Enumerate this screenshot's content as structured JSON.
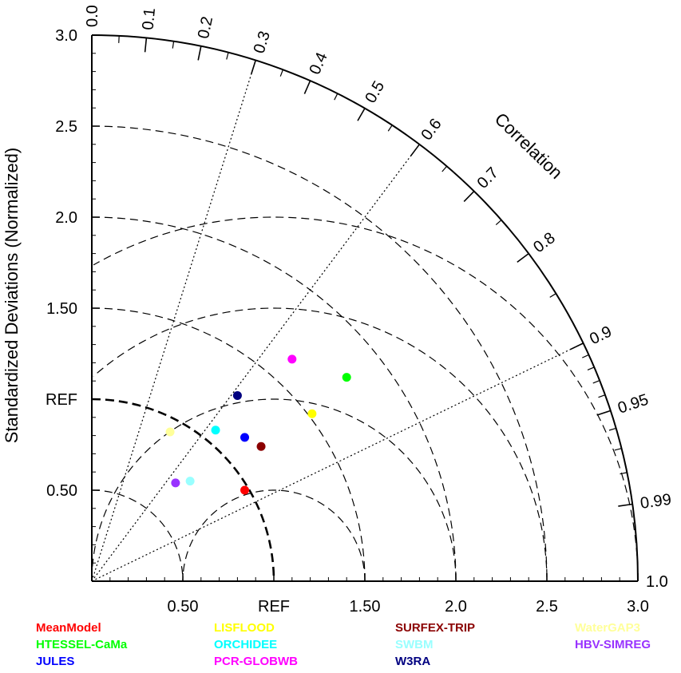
{
  "chart_data": {
    "type": "scatter",
    "subtype": "taylor-diagram",
    "ylabel": "Standardized Deviations (Normalized)",
    "correlation_label": "Correlation",
    "ref_label": "REF",
    "std_range": [
      0,
      3.0
    ],
    "std_ticks": [
      {
        "value": 0.5,
        "label": "0.50"
      },
      {
        "value": 1.0,
        "label": "REF"
      },
      {
        "value": 1.5,
        "label": "1.50"
      },
      {
        "value": 2.0,
        "label": "2.0"
      },
      {
        "value": 2.5,
        "label": "2.5"
      },
      {
        "value": 3.0,
        "label": "3.0"
      }
    ],
    "correlation_ticks": [
      {
        "value": 0.0,
        "label": "0.0"
      },
      {
        "value": 0.1,
        "label": "0.1"
      },
      {
        "value": 0.2,
        "label": "0.2"
      },
      {
        "value": 0.3,
        "label": "0.3"
      },
      {
        "value": 0.4,
        "label": "0.4"
      },
      {
        "value": 0.5,
        "label": "0.5"
      },
      {
        "value": 0.6,
        "label": "0.6"
      },
      {
        "value": 0.7,
        "label": "0.7"
      },
      {
        "value": 0.8,
        "label": "0.8"
      },
      {
        "value": 0.9,
        "label": "0.9"
      },
      {
        "value": 0.95,
        "label": "0.95"
      },
      {
        "value": 0.99,
        "label": "0.99"
      },
      {
        "value": 1.0,
        "label": "1.0"
      }
    ],
    "correlation_rays": [
      0.3,
      0.6,
      0.9
    ],
    "rms_arcs": [
      0.5,
      1.0,
      1.5,
      2.0
    ],
    "std_arcs": [
      0.5,
      1.0,
      1.5,
      2.0,
      2.5
    ],
    "series": [
      {
        "name": "MeanModel",
        "color": "#ff0000",
        "x": 0.84,
        "y": 0.5
      },
      {
        "name": "HTESSEL-CaMa",
        "color": "#00ff00",
        "x": 1.4,
        "y": 1.12
      },
      {
        "name": "JULES",
        "color": "#0000ff",
        "x": 0.84,
        "y": 0.79
      },
      {
        "name": "LISFLOOD",
        "color": "#ffff00",
        "x": 1.21,
        "y": 0.92
      },
      {
        "name": "ORCHIDEE",
        "color": "#00ffff",
        "x": 0.68,
        "y": 0.83
      },
      {
        "name": "PCR-GLOBWB",
        "color": "#ff00ff",
        "x": 1.1,
        "y": 1.22
      },
      {
        "name": "SURFEX-TRIP",
        "color": "#8b0000",
        "x": 0.93,
        "y": 0.74
      },
      {
        "name": "SWBM",
        "color": "#99ffff",
        "x": 0.54,
        "y": 0.55
      },
      {
        "name": "W3RA",
        "color": "#000080",
        "x": 0.8,
        "y": 1.02
      },
      {
        "name": "WaterGAP3",
        "color": "#ffff99",
        "x": 0.43,
        "y": 0.82
      },
      {
        "name": "HBV-SIMREG",
        "color": "#9933ff",
        "x": 0.46,
        "y": 0.54
      }
    ]
  },
  "legend": {
    "columns": [
      [
        "MeanModel",
        "HTESSEL-CaMa",
        "JULES"
      ],
      [
        "LISFLOOD",
        "ORCHIDEE",
        "PCR-GLOBWB"
      ],
      [
        "SURFEX-TRIP",
        "SWBM",
        "W3RA"
      ],
      [
        "WaterGAP3",
        "HBV-SIMREG"
      ]
    ]
  }
}
